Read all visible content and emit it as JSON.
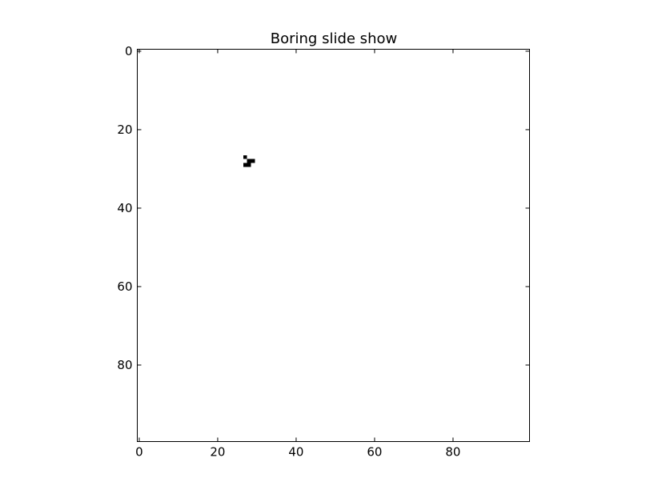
{
  "chart_data": {
    "type": "heatmap",
    "title": "Boring slide show",
    "xlabel": "",
    "ylabel": "",
    "xlim": [
      -0.5,
      99.5
    ],
    "ylim": [
      99.5,
      -0.5
    ],
    "y_inverted": true,
    "grid": false,
    "colormap": "gray_r",
    "background_color": "#ffffff",
    "cell_color": "#000000",
    "x_ticks": [
      0,
      20,
      40,
      60,
      80
    ],
    "x_tick_labels": [
      "0",
      "20",
      "40",
      "60",
      "80"
    ],
    "y_ticks": [
      0,
      20,
      40,
      60,
      80
    ],
    "y_tick_labels": [
      "0",
      "20",
      "40",
      "60",
      "80"
    ],
    "grid_size": [
      100,
      100
    ],
    "filled_cells": [
      {
        "x": 27,
        "y": 27
      },
      {
        "x": 28,
        "y": 28
      },
      {
        "x": 29,
        "y": 28
      },
      {
        "x": 27,
        "y": 29
      },
      {
        "x": 28,
        "y": 29
      }
    ]
  }
}
